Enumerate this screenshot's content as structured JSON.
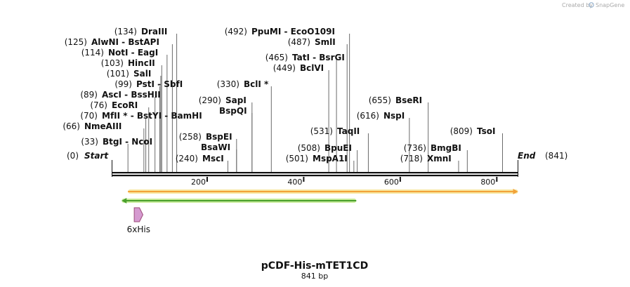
{
  "credit": {
    "text": "Created by",
    "brand": "SnapGene"
  },
  "sequence": {
    "name": "pCDF-His-mTET1CD",
    "length_label": "841 bp",
    "length": 841
  },
  "ends": {
    "start_label": "Start",
    "start_pos": "(0)",
    "end_label": "End",
    "end_pos": "(841)"
  },
  "ruler_ticks": [
    {
      "pos": 200,
      "label": "200"
    },
    {
      "pos": 400,
      "label": "400"
    },
    {
      "pos": 600,
      "label": "600"
    },
    {
      "pos": 800,
      "label": "800"
    }
  ],
  "sites": [
    {
      "pos": 134,
      "pos_label": "(134)",
      "names": "DraIII"
    },
    {
      "pos": 125,
      "pos_label": "(125)",
      "names": "AlwNI  - BstAPI"
    },
    {
      "pos": 114,
      "pos_label": "(114)",
      "names": "NotI  - EagI"
    },
    {
      "pos": 103,
      "pos_label": "(103)",
      "names": "HincII"
    },
    {
      "pos": 101,
      "pos_label": "(101)",
      "names": "SalI"
    },
    {
      "pos": 99,
      "pos_label": "(99)",
      "names": "PstI  - SbfI"
    },
    {
      "pos": 89,
      "pos_label": "(89)",
      "names": "AscI  - BssHII"
    },
    {
      "pos": 76,
      "pos_label": "(76)",
      "names": "EcoRI"
    },
    {
      "pos": 70,
      "pos_label": "(70)",
      "names": "MfII * - BstYI  - BamHI"
    },
    {
      "pos": 66,
      "pos_label": "(66)",
      "names": "NmeAIII"
    },
    {
      "pos": 33,
      "pos_label": "(33)",
      "names": "BtgI  - NcoI"
    },
    {
      "pos": 258,
      "pos_label": "(258)",
      "names": "BspEI"
    },
    {
      "pos": 258,
      "pos_label": "",
      "names": "BsaWI"
    },
    {
      "pos": 240,
      "pos_label": "(240)",
      "names": "MscI"
    },
    {
      "pos": 290,
      "pos_label": "(290)",
      "names": "SapI"
    },
    {
      "pos": 290,
      "pos_label": "",
      "names": "BspQI"
    },
    {
      "pos": 330,
      "pos_label": "(330)",
      "names": "BclI *"
    },
    {
      "pos": 492,
      "pos_label": "(492)",
      "names": "PpuMI  - EcoO109I"
    },
    {
      "pos": 487,
      "pos_label": "(487)",
      "names": "SmlI"
    },
    {
      "pos": 465,
      "pos_label": "(465)",
      "names": "TatI  - BsrGI"
    },
    {
      "pos": 449,
      "pos_label": "(449)",
      "names": "BclVI"
    },
    {
      "pos": 531,
      "pos_label": "(531)",
      "names": "TaqII"
    },
    {
      "pos": 508,
      "pos_label": "(508)",
      "names": "BpuEI"
    },
    {
      "pos": 501,
      "pos_label": "(501)",
      "names": "MspA1I"
    },
    {
      "pos": 655,
      "pos_label": "(655)",
      "names": "BseRI"
    },
    {
      "pos": 616,
      "pos_label": "(616)",
      "names": "NspI"
    },
    {
      "pos": 736,
      "pos_label": "(736)",
      "names": "BmgBI"
    },
    {
      "pos": 718,
      "pos_label": "(718)",
      "names": "XmnI"
    },
    {
      "pos": 809,
      "pos_label": "(809)",
      "names": "TsoI"
    }
  ],
  "features": [
    {
      "name": "orange-feature",
      "start": 33,
      "end": 841,
      "direction": "forward",
      "color": "#f2a23a",
      "fill": "#f7e7a0"
    },
    {
      "name": "green-feature",
      "start": 20,
      "end": 506,
      "direction": "reverse",
      "color": "#4aa02c",
      "fill": "#c7ec9b"
    },
    {
      "name": "6xHis",
      "label": "6xHis",
      "start": 46,
      "end": 64,
      "direction": "forward",
      "color": "#9c4c7a",
      "fill": "#d59ad0"
    }
  ]
}
